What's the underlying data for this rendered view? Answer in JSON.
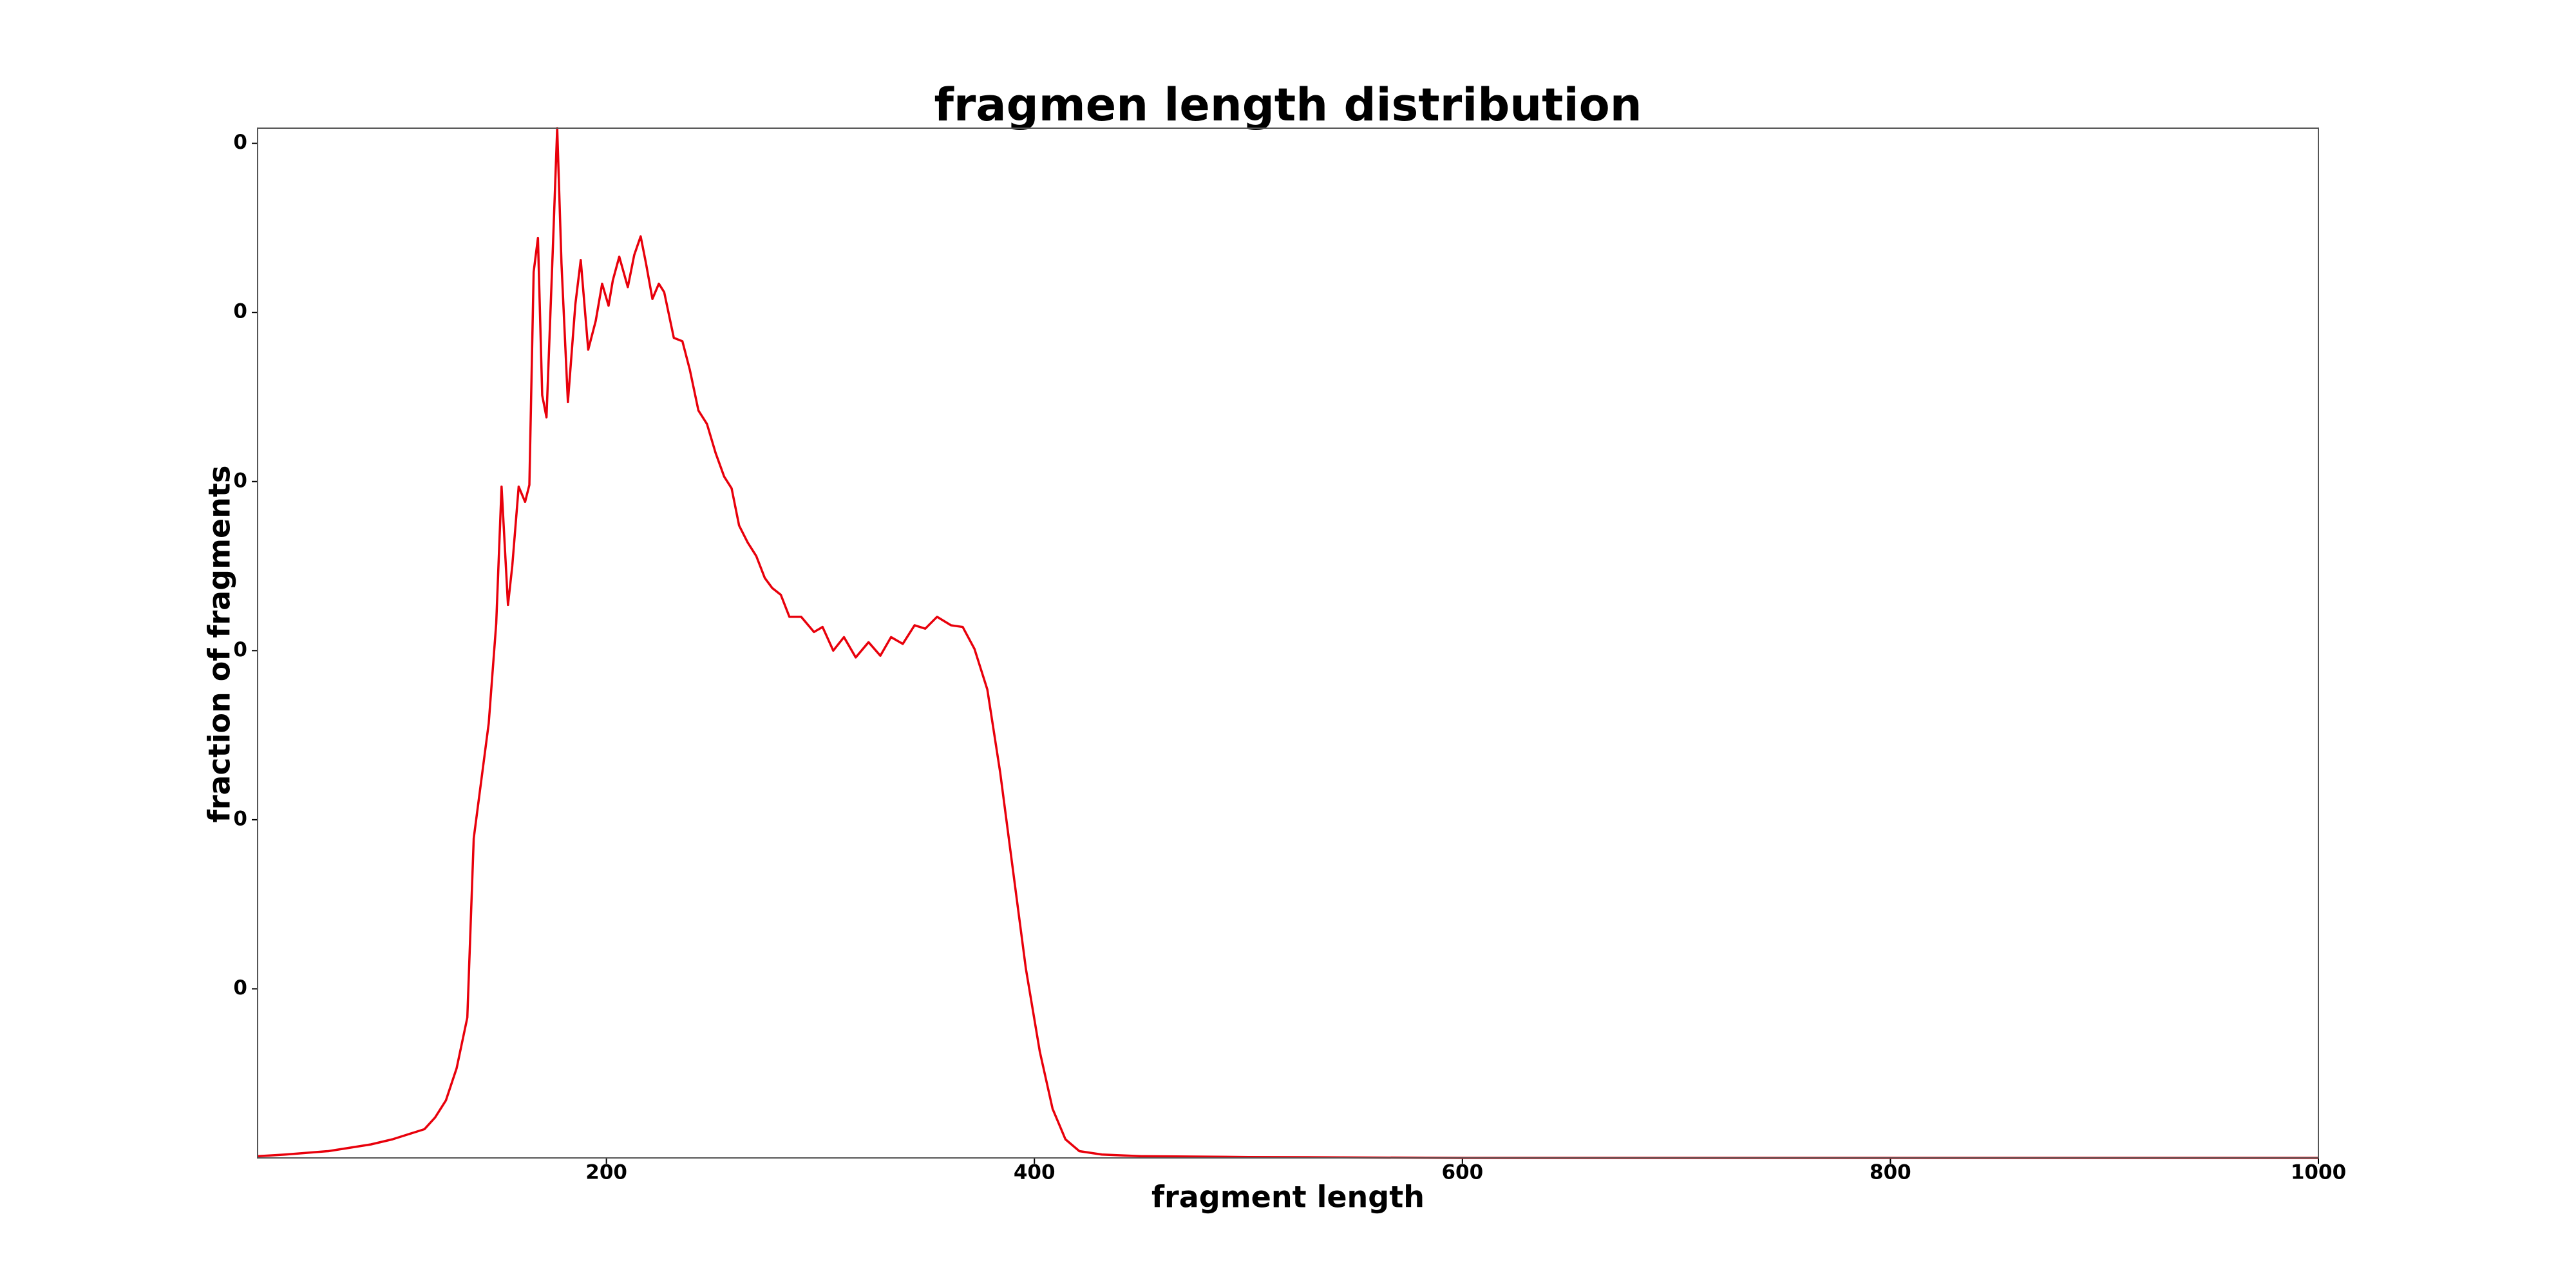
{
  "chart_data": {
    "type": "line",
    "title": "fragmen length distribution",
    "xlabel": "fragment length",
    "ylabel": "fraction of fragments",
    "x": [
      37,
      50,
      70,
      90,
      100,
      110,
      115,
      120,
      125,
      130,
      135,
      138,
      145,
      148.5,
      151,
      154,
      156,
      159,
      162,
      164,
      166,
      168,
      170,
      172,
      175,
      177,
      179,
      182,
      185.5,
      188,
      191.5,
      195,
      198,
      201,
      203,
      206,
      210,
      213,
      216,
      218.5,
      221.5,
      224.5,
      227,
      231.5,
      235.5,
      239,
      243,
      247,
      251,
      255,
      258.5,
      262,
      266,
      270,
      274,
      277.5,
      281.5,
      285.5,
      291,
      297,
      301,
      306,
      311,
      316.5,
      322.5,
      328,
      333,
      338.5,
      344,
      349,
      354.5,
      361,
      366.5,
      372,
      378,
      384,
      390,
      396,
      402.5,
      408.5,
      414.5,
      421,
      431.5,
      450,
      500,
      600,
      700,
      800,
      900,
      1000
    ],
    "series": [
      {
        "name": "fraction",
        "color": "#e8000b",
        "values": [
          1e-05,
          2e-05,
          4e-05,
          8e-05,
          0.00011,
          0.00015,
          0.00017,
          0.00024,
          0.00034,
          0.00053,
          0.00083,
          0.00189,
          0.00257,
          0.00316,
          0.00397,
          0.00327,
          0.0035,
          0.00397,
          0.00388,
          0.00398,
          0.00524,
          0.00544,
          0.00451,
          0.00438,
          0.00539,
          0.00609,
          0.00529,
          0.00447,
          0.00505,
          0.00531,
          0.00478,
          0.00495,
          0.00517,
          0.00504,
          0.00519,
          0.00533,
          0.00515,
          0.00534,
          0.00545,
          0.00529,
          0.00508,
          0.00517,
          0.00512,
          0.00485,
          0.00483,
          0.00466,
          0.00442,
          0.00434,
          0.00417,
          0.00403,
          0.00396,
          0.00374,
          0.00364,
          0.00356,
          0.00343,
          0.00337,
          0.00333,
          0.0032,
          0.0032,
          0.00311,
          0.00314,
          0.003,
          0.00308,
          0.00296,
          0.00305,
          0.00297,
          0.00308,
          0.00304,
          0.00315,
          0.00313,
          0.0032,
          0.00315,
          0.00314,
          0.00301,
          0.00277,
          0.00228,
          0.0017,
          0.00112,
          0.00063,
          0.00029,
          0.00011,
          4e-05,
          2e-05,
          1e-05,
          5e-06,
          0,
          0,
          0,
          0,
          0
        ]
      }
    ],
    "xlim": [
      37,
      1000
    ],
    "xticks": [
      200,
      400,
      600,
      800,
      1000
    ],
    "ylim": [
      0,
      0.00609
    ],
    "yticks": [
      {
        "value": 0.001,
        "label": "0"
      },
      {
        "value": 0.002,
        "label": "0"
      },
      {
        "value": 0.003,
        "label": "0"
      },
      {
        "value": 0.004,
        "label": "0"
      },
      {
        "value": 0.005,
        "label": "0"
      },
      {
        "value": 0.006,
        "label": "0"
      }
    ],
    "grid": false
  }
}
